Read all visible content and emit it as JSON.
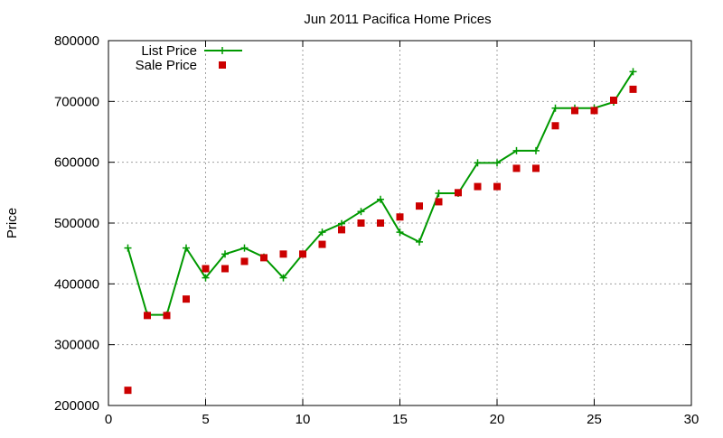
{
  "chart_data": {
    "type": "line",
    "title": "Jun 2011 Pacifica Home Prices",
    "xlabel": "",
    "ylabel": "Price",
    "xlim": [
      0,
      30
    ],
    "ylim": [
      200000,
      800000
    ],
    "x_ticks": [
      0,
      5,
      10,
      15,
      20,
      25,
      30
    ],
    "y_ticks": [
      200000,
      300000,
      400000,
      500000,
      600000,
      700000,
      800000
    ],
    "grid": true,
    "legend_position": "top-left",
    "series": [
      {
        "name": "List Price",
        "style": "line-with-plus-markers",
        "color": "#009900",
        "x": [
          1,
          2,
          3,
          4,
          5,
          6,
          7,
          8,
          9,
          10,
          11,
          12,
          13,
          14,
          15,
          16,
          17,
          18,
          19,
          20,
          21,
          22,
          23,
          24,
          25,
          26,
          27
        ],
        "y": [
          459000,
          349000,
          349000,
          459000,
          410000,
          449000,
          459000,
          444000,
          410000,
          449000,
          485000,
          499000,
          519000,
          539000,
          485000,
          469000,
          549000,
          549000,
          599000,
          599000,
          619000,
          619000,
          689000,
          689000,
          689000,
          699000,
          749000
        ]
      },
      {
        "name": "Sale Price",
        "style": "square-markers",
        "color": "#cc0000",
        "x": [
          1,
          2,
          3,
          4,
          5,
          6,
          7,
          8,
          9,
          10,
          11,
          12,
          13,
          14,
          15,
          16,
          17,
          18,
          19,
          20,
          21,
          22,
          23,
          24,
          25,
          26,
          27
        ],
        "y": [
          225000,
          348000,
          348000,
          375000,
          425000,
          425000,
          437000,
          443000,
          449000,
          449000,
          465000,
          489000,
          500000,
          500000,
          510000,
          528000,
          535000,
          550000,
          560000,
          560000,
          590000,
          590000,
          660000,
          685000,
          685000,
          702000,
          720000
        ]
      }
    ]
  }
}
